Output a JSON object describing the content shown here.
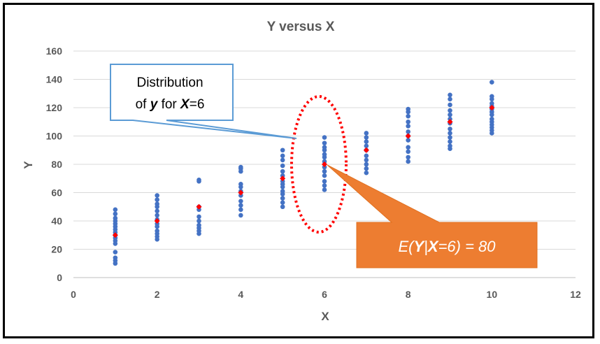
{
  "chart_data": {
    "type": "scatter",
    "title": "Y versus X",
    "xlabel": "X",
    "ylabel": "Y",
    "xlim": [
      0,
      12
    ],
    "ylim": [
      0,
      160
    ],
    "xticks": [
      "0",
      "2",
      "4",
      "6",
      "8",
      "10",
      "12"
    ],
    "yticks": [
      "0",
      "20",
      "40",
      "60",
      "80",
      "100",
      "120",
      "140",
      "160"
    ],
    "grid": "horizontal",
    "colors": {
      "points": "#4472c4",
      "means": "#ff0000",
      "callout_fill": "#ed7d31",
      "callout_border": "#5b9bd5",
      "ellipse": "#ff0000"
    },
    "series": [
      {
        "role": "observations",
        "points": [
          [
            1,
            48
          ],
          [
            1,
            45
          ],
          [
            1,
            42
          ],
          [
            1,
            40
          ],
          [
            1,
            38
          ],
          [
            1,
            36
          ],
          [
            1,
            34
          ],
          [
            1,
            32
          ],
          [
            1,
            30
          ],
          [
            1,
            28
          ],
          [
            1,
            26
          ],
          [
            1,
            24
          ],
          [
            1,
            18
          ],
          [
            1,
            14
          ],
          [
            1,
            12
          ],
          [
            1,
            10
          ],
          [
            2,
            58
          ],
          [
            2,
            55
          ],
          [
            2,
            52
          ],
          [
            2,
            50
          ],
          [
            2,
            47
          ],
          [
            2,
            44
          ],
          [
            2,
            41
          ],
          [
            2,
            38
          ],
          [
            2,
            36
          ],
          [
            2,
            33
          ],
          [
            2,
            31
          ],
          [
            2,
            29
          ],
          [
            2,
            27
          ],
          [
            3,
            69
          ],
          [
            3,
            68
          ],
          [
            3,
            50
          ],
          [
            3,
            48
          ],
          [
            3,
            43
          ],
          [
            3,
            40
          ],
          [
            3,
            37
          ],
          [
            3,
            35
          ],
          [
            3,
            33
          ],
          [
            3,
            31
          ],
          [
            4,
            78
          ],
          [
            4,
            77
          ],
          [
            4,
            75
          ],
          [
            4,
            66
          ],
          [
            4,
            64
          ],
          [
            4,
            61
          ],
          [
            4,
            58
          ],
          [
            4,
            54
          ],
          [
            4,
            51
          ],
          [
            4,
            48
          ],
          [
            4,
            44
          ],
          [
            5,
            90
          ],
          [
            5,
            86
          ],
          [
            5,
            83
          ],
          [
            5,
            79
          ],
          [
            5,
            75
          ],
          [
            5,
            72
          ],
          [
            5,
            68
          ],
          [
            5,
            66
          ],
          [
            5,
            64
          ],
          [
            5,
            61
          ],
          [
            5,
            59
          ],
          [
            5,
            56
          ],
          [
            5,
            53
          ],
          [
            5,
            50
          ],
          [
            6,
            99
          ],
          [
            6,
            95
          ],
          [
            6,
            92
          ],
          [
            6,
            90
          ],
          [
            6,
            87
          ],
          [
            6,
            85
          ],
          [
            6,
            82
          ],
          [
            6,
            78
          ],
          [
            6,
            75
          ],
          [
            6,
            72
          ],
          [
            6,
            68
          ],
          [
            6,
            65
          ],
          [
            6,
            62
          ],
          [
            7,
            102
          ],
          [
            7,
            99
          ],
          [
            7,
            96
          ],
          [
            7,
            93
          ],
          [
            7,
            90
          ],
          [
            7,
            86
          ],
          [
            7,
            83
          ],
          [
            7,
            80
          ],
          [
            7,
            77
          ],
          [
            7,
            74
          ],
          [
            8,
            119
          ],
          [
            8,
            117
          ],
          [
            8,
            114
          ],
          [
            8,
            110
          ],
          [
            8,
            107
          ],
          [
            8,
            103
          ],
          [
            8,
            100
          ],
          [
            8,
            97
          ],
          [
            8,
            92
          ],
          [
            8,
            89
          ],
          [
            8,
            85
          ],
          [
            8,
            82
          ],
          [
            9,
            129
          ],
          [
            9,
            126
          ],
          [
            9,
            122
          ],
          [
            9,
            118
          ],
          [
            9,
            115
          ],
          [
            9,
            112
          ],
          [
            9,
            109
          ],
          [
            9,
            105
          ],
          [
            9,
            102
          ],
          [
            9,
            99
          ],
          [
            9,
            96
          ],
          [
            9,
            93
          ],
          [
            9,
            91
          ],
          [
            10,
            138
          ],
          [
            10,
            128
          ],
          [
            10,
            126
          ],
          [
            10,
            123
          ],
          [
            10,
            121
          ],
          [
            10,
            119
          ],
          [
            10,
            117
          ],
          [
            10,
            115
          ],
          [
            10,
            112
          ],
          [
            10,
            110
          ],
          [
            10,
            108
          ],
          [
            10,
            106
          ],
          [
            10,
            104
          ],
          [
            10,
            102
          ]
        ]
      },
      {
        "role": "conditional-means",
        "points": [
          [
            1,
            30
          ],
          [
            2,
            40
          ],
          [
            3,
            50
          ],
          [
            4,
            60
          ],
          [
            5,
            70
          ],
          [
            6,
            80
          ],
          [
            7,
            90
          ],
          [
            8,
            100
          ],
          [
            9,
            110
          ],
          [
            10,
            120
          ]
        ]
      }
    ],
    "annotations": {
      "callout_left": {
        "line1": "Distribution",
        "line2_pre": "of ",
        "line2_y": "y",
        "line2_mid": " for ",
        "line2_x": "X",
        "line2_post": "=6"
      },
      "callout_right": {
        "pre": "E(",
        "y": "Y",
        "bar": "|",
        "x": "X",
        "post": "=6) = 80"
      },
      "ellipse_center": [
        6,
        80
      ]
    }
  }
}
